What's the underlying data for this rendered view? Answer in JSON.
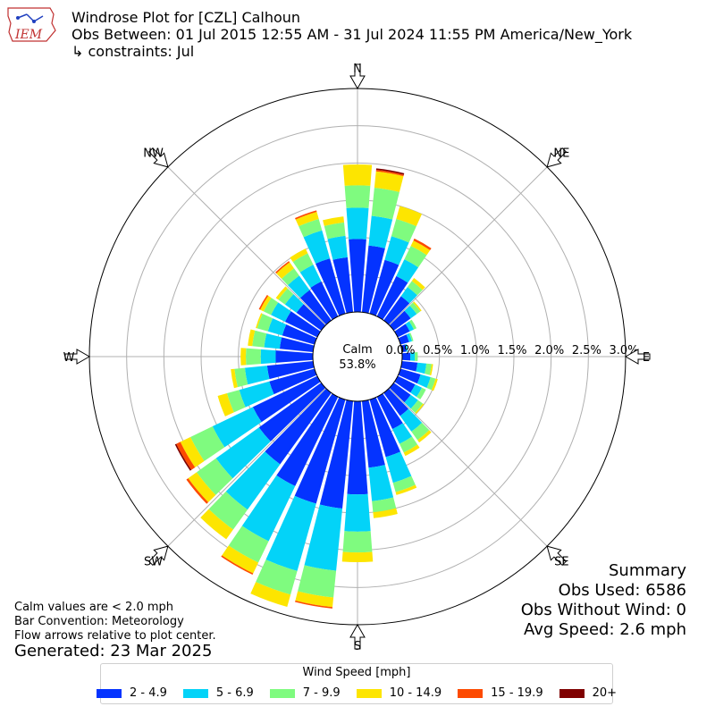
{
  "header": {
    "logo_text": "IEM",
    "title": "Windrose Plot for [CZL] Calhoun",
    "period": "Obs Between: 01 Jul 2015 12:55 AM - 31 Jul 2024 11:55 PM America/New_York",
    "constraints": "↳ constraints: Jul"
  },
  "chart_data": {
    "type": "windrose",
    "direction_labels": [
      "N",
      "NE",
      "E",
      "SE",
      "S",
      "SW",
      "W",
      "NW"
    ],
    "radial_unit": "%",
    "radial_max": 3.0,
    "radial_ticks": [
      "0.0%",
      "0.5%",
      "1.0%",
      "1.5%",
      "2.0%",
      "2.5%",
      "3.0%"
    ],
    "calm_label": "Calm",
    "calm_value": "53.8%",
    "speed_bins": [
      {
        "label": "2 - 4.9",
        "color": "#0433ff"
      },
      {
        "label": "5 - 6.9",
        "color": "#03d3f8"
      },
      {
        "label": "7 - 9.9",
        "color": "#7ffb7f"
      },
      {
        "label": "10 - 14.9",
        "color": "#fde500"
      },
      {
        "label": "15 - 19.9",
        "color": "#fd4a00"
      },
      {
        "label": "20+",
        "color": "#7f0000"
      }
    ],
    "sectors": [
      {
        "dir": 0,
        "values": [
          0.98,
          0.42,
          0.3,
          0.28,
          0.0,
          0.0
        ]
      },
      {
        "dir": 10,
        "values": [
          0.9,
          0.4,
          0.38,
          0.22,
          0.02,
          0.02
        ]
      },
      {
        "dir": 20,
        "values": [
          0.75,
          0.33,
          0.24,
          0.18,
          0.0,
          0.0
        ]
      },
      {
        "dir": 30,
        "values": [
          0.6,
          0.25,
          0.2,
          0.08,
          0.03,
          0.0
        ]
      },
      {
        "dir": 40,
        "values": [
          0.4,
          0.15,
          0.1,
          0.05,
          0.0,
          0.0
        ]
      },
      {
        "dir": 50,
        "values": [
          0.28,
          0.1,
          0.06,
          0.02,
          0.0,
          0.0
        ]
      },
      {
        "dir": 60,
        "values": [
          0.18,
          0.06,
          0.04,
          0.0,
          0.0,
          0.0
        ]
      },
      {
        "dir": 70,
        "values": [
          0.12,
          0.04,
          0.02,
          0.0,
          0.0,
          0.0
        ]
      },
      {
        "dir": 80,
        "values": [
          0.06,
          0.02,
          0.0,
          0.0,
          0.0,
          0.0
        ]
      },
      {
        "dir": 90,
        "values": [
          0.11,
          0.06,
          0.04,
          0.0,
          0.0,
          0.0
        ]
      },
      {
        "dir": 100,
        "values": [
          0.21,
          0.12,
          0.07,
          0.02,
          0.0,
          0.0
        ]
      },
      {
        "dir": 110,
        "values": [
          0.28,
          0.14,
          0.07,
          0.03,
          0.0,
          0.0
        ]
      },
      {
        "dir": 120,
        "values": [
          0.26,
          0.1,
          0.06,
          0.0,
          0.0,
          0.0
        ]
      },
      {
        "dir": 130,
        "values": [
          0.28,
          0.12,
          0.08,
          0.02,
          0.0,
          0.0
        ]
      },
      {
        "dir": 140,
        "values": [
          0.38,
          0.26,
          0.14,
          0.04,
          0.0,
          0.0
        ]
      },
      {
        "dir": 150,
        "values": [
          0.48,
          0.22,
          0.13,
          0.05,
          0.0,
          0.0
        ]
      },
      {
        "dir": 160,
        "values": [
          0.8,
          0.36,
          0.13,
          0.04,
          0.0,
          0.0
        ]
      },
      {
        "dir": 170,
        "values": [
          0.9,
          0.45,
          0.15,
          0.08,
          0.0,
          0.0
        ]
      },
      {
        "dir": 180,
        "values": [
          1.25,
          0.5,
          0.28,
          0.13,
          0.0,
          0.0
        ]
      },
      {
        "dir": 190,
        "values": [
          1.45,
          0.84,
          0.36,
          0.13,
          0.02,
          0.0
        ]
      },
      {
        "dir": 200,
        "values": [
          1.45,
          0.94,
          0.33,
          0.17,
          0.0,
          0.0
        ]
      },
      {
        "dir": 210,
        "values": [
          1.33,
          0.82,
          0.32,
          0.16,
          0.02,
          0.0
        ]
      },
      {
        "dir": 220,
        "values": [
          1.18,
          0.75,
          0.33,
          0.16,
          0.0,
          0.0
        ]
      },
      {
        "dir": 230,
        "values": [
          1.03,
          0.71,
          0.32,
          0.14,
          0.03,
          0.0
        ]
      },
      {
        "dir": 240,
        "values": [
          0.96,
          0.6,
          0.33,
          0.15,
          0.06,
          0.02
        ]
      },
      {
        "dir": 250,
        "values": [
          0.63,
          0.42,
          0.17,
          0.13,
          0.0,
          0.0
        ]
      },
      {
        "dir": 260,
        "values": [
          0.62,
          0.3,
          0.14,
          0.05,
          0.0,
          0.0
        ]
      },
      {
        "dir": 270,
        "values": [
          0.5,
          0.2,
          0.2,
          0.07,
          0.0,
          0.0
        ]
      },
      {
        "dir": 280,
        "values": [
          0.45,
          0.21,
          0.16,
          0.06,
          0.0,
          0.0
        ]
      },
      {
        "dir": 290,
        "values": [
          0.45,
          0.2,
          0.15,
          0.02,
          0.0,
          0.0
        ]
      },
      {
        "dir": 300,
        "values": [
          0.48,
          0.21,
          0.11,
          0.05,
          0.02,
          0.0
        ]
      },
      {
        "dir": 310,
        "values": [
          0.41,
          0.19,
          0.11,
          0.04,
          0.0,
          0.0
        ]
      },
      {
        "dir": 320,
        "values": [
          0.5,
          0.24,
          0.12,
          0.1,
          0.02,
          0.0
        ]
      },
      {
        "dir": 330,
        "values": [
          0.52,
          0.25,
          0.17,
          0.07,
          0.0,
          0.0
        ]
      },
      {
        "dir": 340,
        "values": [
          0.77,
          0.39,
          0.16,
          0.1,
          0.02,
          0.0
        ]
      },
      {
        "dir": 350,
        "values": [
          0.74,
          0.29,
          0.18,
          0.08,
          0.0,
          0.0
        ]
      }
    ]
  },
  "notes": {
    "calm_note": "Calm values are < 2.0 mph",
    "bar_convention": "Bar Convention: Meteorology",
    "flow_note": "Flow arrows relative to plot center.",
    "generated": "Generated: 23 Mar 2025"
  },
  "summary": {
    "title": "Summary",
    "obs_used": "Obs Used: 6586",
    "obs_without_wind": "Obs Without Wind: 0",
    "avg_speed": "Avg Speed: 2.6 mph"
  },
  "legend": {
    "title": "Wind Speed [mph]"
  }
}
